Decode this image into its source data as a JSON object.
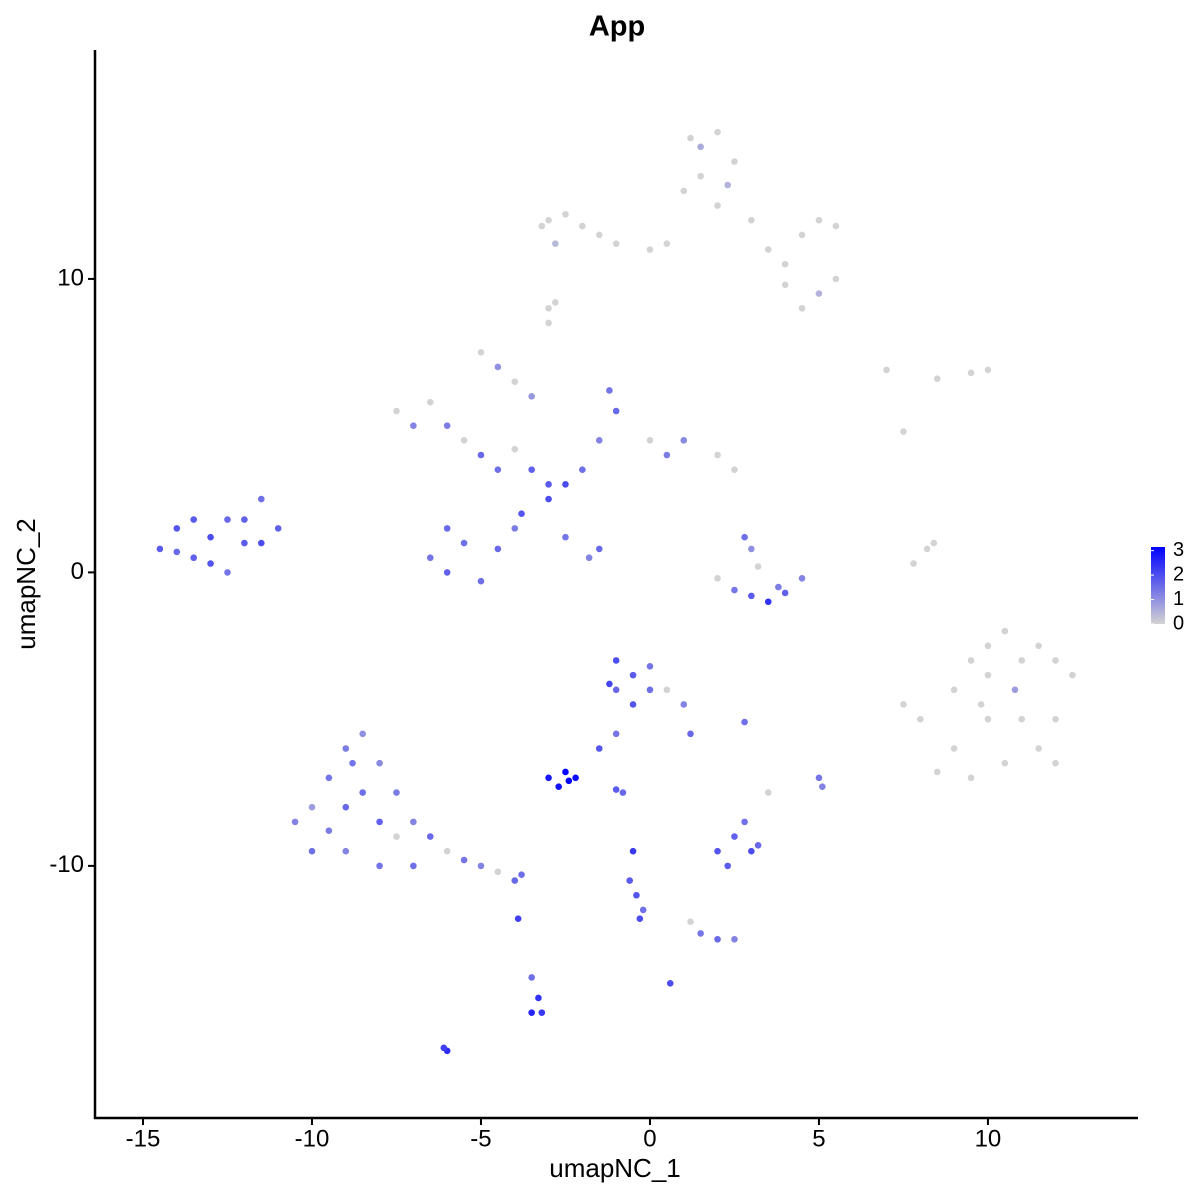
{
  "chart_data": {
    "type": "scatter",
    "title": "App",
    "x_label": "umapNC_1",
    "y_label": "umapNC_2",
    "xlim": [
      -16.42,
      14.44
    ],
    "ylim": [
      -18.59,
      17.8
    ],
    "xticks": [
      -15,
      -10,
      -5,
      0,
      5,
      10
    ],
    "yticks": [
      -10,
      0,
      10
    ],
    "clim": [
      0,
      3.15
    ],
    "colorbar_ticks": [
      0,
      1,
      2,
      3
    ],
    "low_color": "#d3d3d3",
    "high_color": "#0000ff",
    "x": [
      -3,
      -2.5,
      -2,
      -1.5,
      -1,
      0,
      0.5,
      1,
      1.5,
      2,
      2.5,
      1.5,
      2,
      3,
      3.5,
      4,
      4.5,
      5,
      5.5,
      5.5,
      5,
      4.5,
      4,
      -2.8,
      -3,
      -3.2,
      1.2,
      2.3,
      -7.5,
      -7,
      -6.5,
      -6,
      -5.5,
      -5,
      -4.5,
      -4,
      -3.5,
      -3,
      -2.5,
      -2,
      -1.5,
      -1,
      -1.2,
      0,
      0.5,
      1,
      2,
      2.5,
      -5,
      -4.5,
      -4,
      -3.5,
      -6,
      -6.5,
      -6,
      -5,
      -4.5,
      -4,
      -5.5,
      -3.8,
      -2.5,
      -1.8,
      -1.5,
      -3,
      -14.5,
      -14,
      -13.5,
      -13,
      -12.5,
      -12,
      -11.5,
      -11,
      -13,
      -12.5,
      -14,
      -13.5,
      -12,
      -11.5,
      2,
      2.5,
      3,
      3.5,
      4,
      4.5,
      3,
      3.2,
      2.8,
      3.8,
      7.5,
      8,
      9,
      9.5,
      10,
      10.5,
      11,
      11.5,
      12,
      12.5,
      12,
      11,
      10,
      9,
      9.5,
      10.5,
      11.5,
      12,
      10.8,
      9.8,
      8.5,
      10,
      7.8,
      8.2,
      8.4,
      7.5,
      7,
      8.5,
      9.5,
      10,
      -3,
      -2.8,
      -1,
      -0.5,
      -1,
      -0.5,
      0,
      0,
      -1.2,
      0.5,
      1,
      1.2,
      -1,
      -1.5,
      -3,
      -2.5,
      -2.2,
      -2.7,
      -2.4,
      -1,
      -0.8,
      -10.5,
      -10,
      -10,
      -9.5,
      -9,
      -9,
      -9,
      -8.5,
      -8.5,
      -8,
      -8,
      -8,
      -7.5,
      -7.5,
      -7,
      -7,
      -6.5,
      -6,
      -5.5,
      -5,
      -4.5,
      -4,
      -3.8,
      -9.5,
      -8.8,
      -3.9,
      -3.5,
      -3.3,
      -3.5,
      -3.2,
      -6,
      -6.1,
      -0.5,
      -0.6,
      -0.4,
      -0.3,
      -0.2,
      1.5,
      2,
      2.5,
      0.6,
      2,
      2.5,
      3,
      2.8,
      2.3,
      3.2,
      5,
      5.1,
      2.8,
      3.5,
      1.2
    ],
    "y": [
      12,
      12.2,
      11.8,
      11.5,
      11.2,
      11,
      11.2,
      13,
      14.5,
      15,
      14,
      13.5,
      12.5,
      12,
      11,
      10.5,
      11.5,
      12,
      11.8,
      10,
      9.5,
      9,
      9.8,
      11.2,
      9,
      11.8,
      14.8,
      13.2,
      5.5,
      5,
      5.8,
      5,
      4.5,
      4,
      3.5,
      4.2,
      3.5,
      3,
      3,
      3.5,
      4.5,
      5.5,
      6.2,
      4.5,
      4,
      4.5,
      4,
      3.5,
      7.5,
      7,
      6.5,
      6,
      1.5,
      0.5,
      0,
      -0.3,
      0.8,
      1.5,
      1,
      2,
      1.2,
      0.5,
      0.8,
      2.5,
      0.8,
      1.5,
      0.5,
      1.2,
      1.8,
      1,
      2.5,
      1.5,
      0.3,
      0,
      0.7,
      1.8,
      1.8,
      1,
      -0.2,
      -0.6,
      -0.8,
      -1,
      -0.7,
      -0.2,
      0.8,
      0.2,
      1.2,
      -0.5,
      -4.5,
      -5,
      -4,
      -3,
      -2.5,
      -2,
      -3,
      -2.5,
      -3,
      -3.5,
      -5,
      -5,
      -5,
      -6,
      -7,
      -6.5,
      -6,
      -6.5,
      -4,
      -4.5,
      -6.8,
      -3.5,
      0.3,
      0.8,
      1,
      4.8,
      6.9,
      6.6,
      6.8,
      6.9,
      8.5,
      9.2,
      -3,
      -3.5,
      -4,
      -4.5,
      -4,
      -3.2,
      -3.8,
      -4,
      -4.5,
      -5.5,
      -5.5,
      -6,
      -7,
      -6.8,
      -7,
      -7.3,
      -7.1,
      -7.4,
      -7.5,
      -8.5,
      -9.5,
      -8,
      -7,
      -6,
      -8,
      -9.5,
      -5.5,
      -7.5,
      -6.5,
      -8.5,
      -10,
      -7.5,
      -9,
      -8.5,
      -10,
      -9,
      -9.5,
      -9.8,
      -10,
      -10.2,
      -10.5,
      -10.3,
      -8.8,
      -6.5,
      -11.8,
      -13.8,
      -14.5,
      -15,
      -15,
      -16.3,
      -16.2,
      -9.5,
      -10.5,
      -11,
      -11.8,
      -11.5,
      -12.3,
      -12.5,
      -12.5,
      -14,
      -9.5,
      -9,
      -9.5,
      -8.5,
      -10,
      -9.3,
      -7,
      -7.3,
      -5.1,
      -7.5,
      -11.9
    ],
    "values": [
      0,
      0,
      0,
      0,
      0,
      0,
      0,
      0,
      0.6,
      0,
      0,
      0,
      0,
      0,
      0,
      0,
      0,
      0,
      0,
      0,
      0.5,
      0,
      0,
      0.4,
      0,
      0,
      0,
      0.5,
      0,
      1.2,
      0,
      1.3,
      0,
      1.6,
      1.5,
      0,
      1.7,
      1.8,
      2,
      1.5,
      1.2,
      1.6,
      1.4,
      0,
      1.3,
      1.1,
      0,
      0,
      0,
      1,
      0,
      0.9,
      1.6,
      1.4,
      1.7,
      1.5,
      1.6,
      1.3,
      1.5,
      1.9,
      1.4,
      1.2,
      1.6,
      2,
      1.8,
      1.9,
      1.7,
      2,
      1.6,
      1.8,
      1.5,
      1.7,
      1.9,
      1.4,
      1.6,
      1.8,
      1.7,
      2,
      0,
      1.4,
      1.8,
      2.4,
      1.7,
      1.2,
      1,
      0,
      1.5,
      1.3,
      0,
      0,
      0,
      0,
      0,
      0,
      0,
      0,
      0,
      0,
      0,
      0,
      0,
      0,
      0,
      0,
      0,
      0,
      0.8,
      0,
      0,
      0,
      0,
      0,
      0,
      0,
      0,
      0,
      0,
      0,
      0,
      0,
      2,
      1.8,
      1.6,
      1.9,
      1.5,
      1.4,
      2.1,
      0,
      1.2,
      1.6,
      1.4,
      1.9,
      2.8,
      3.1,
      3,
      2.9,
      3.1,
      1.8,
      1.6,
      1.2,
      1.5,
      0.8,
      1.4,
      1.3,
      1.6,
      1.2,
      1,
      1.5,
      1.1,
      1.7,
      1.4,
      1.3,
      0,
      1.2,
      1.5,
      1.6,
      0,
      1.4,
      1.2,
      0,
      1.6,
      1.5,
      1.3,
      1.4,
      2.2,
      1.5,
      2.4,
      2.6,
      2.3,
      2.5,
      2.2,
      2.3,
      1.8,
      1.9,
      2,
      1.5,
      1.4,
      1.6,
      1.2,
      2,
      1.9,
      1.7,
      2,
      1.5,
      1.8,
      1.6,
      1.4,
      1.2,
      1.5,
      0,
      0
    ]
  }
}
